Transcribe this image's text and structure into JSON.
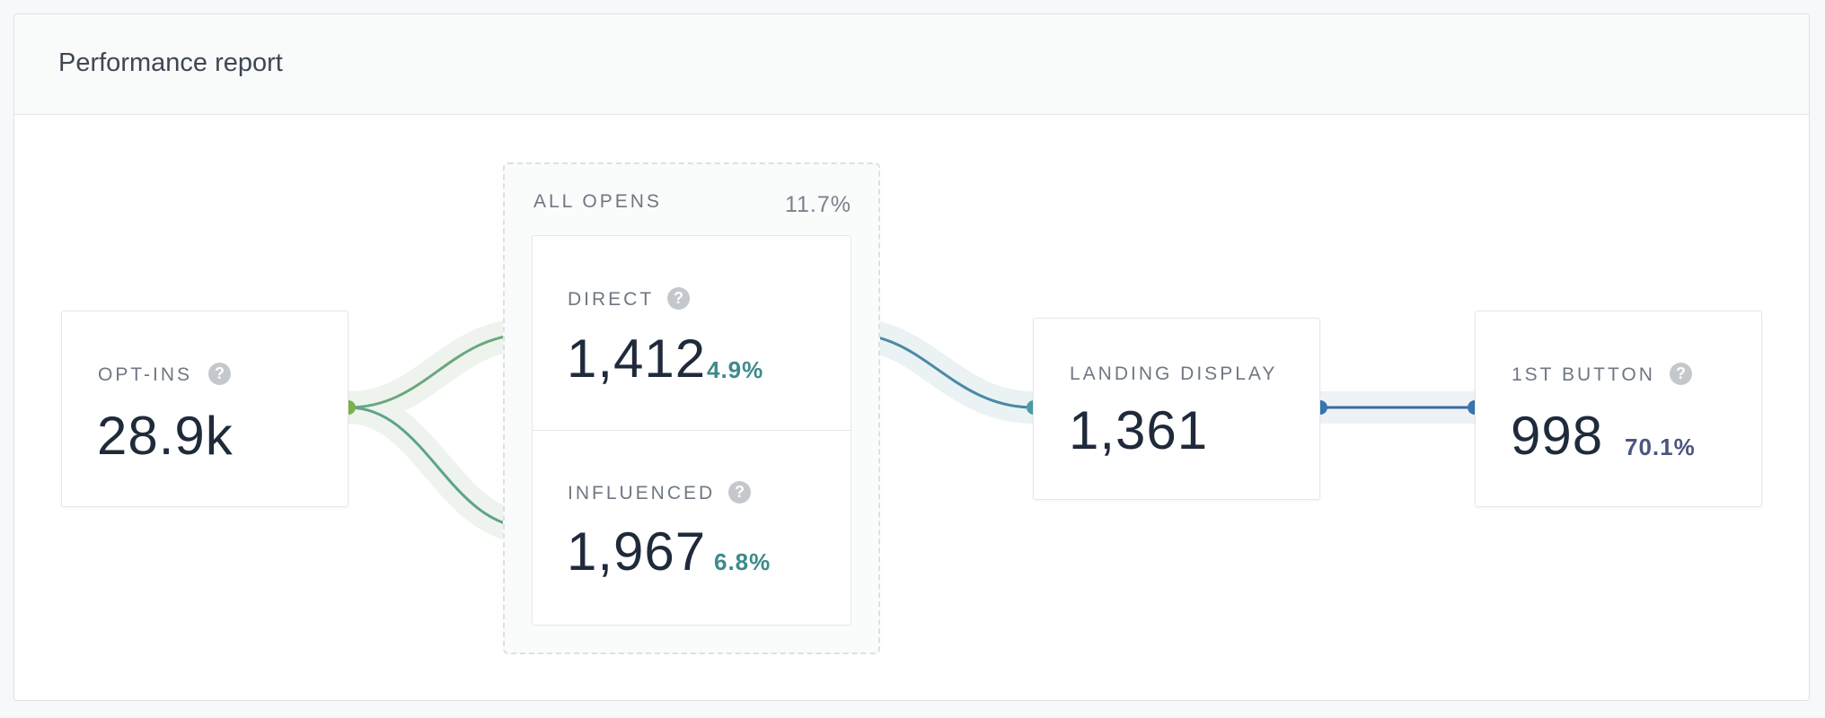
{
  "card": {
    "title": "Performance report"
  },
  "optins": {
    "label": "OPT-INS",
    "value": "28.9k"
  },
  "all_opens": {
    "label": "ALL OPENS",
    "percent": "11.7%"
  },
  "direct": {
    "label": "DIRECT",
    "value": "1,412",
    "percent": "4.9%"
  },
  "influenced": {
    "label": "INFLUENCED",
    "value": "1,967",
    "percent": "6.8%"
  },
  "landing": {
    "label": "LANDING DISPLAY",
    "value": "1,361"
  },
  "first_button": {
    "label": "1ST BUTTON",
    "value": "998",
    "percent": "70.1%"
  },
  "help_glyph": "?",
  "colors": {
    "green": "#7cb24a",
    "teal_green": "#5ea38a",
    "teal": "#4a9aa8",
    "blue": "#3a74ad",
    "percent_teal": "#3e8a8a",
    "percent_navy": "#4a5680"
  },
  "icons": [
    "help-circle-icon"
  ]
}
